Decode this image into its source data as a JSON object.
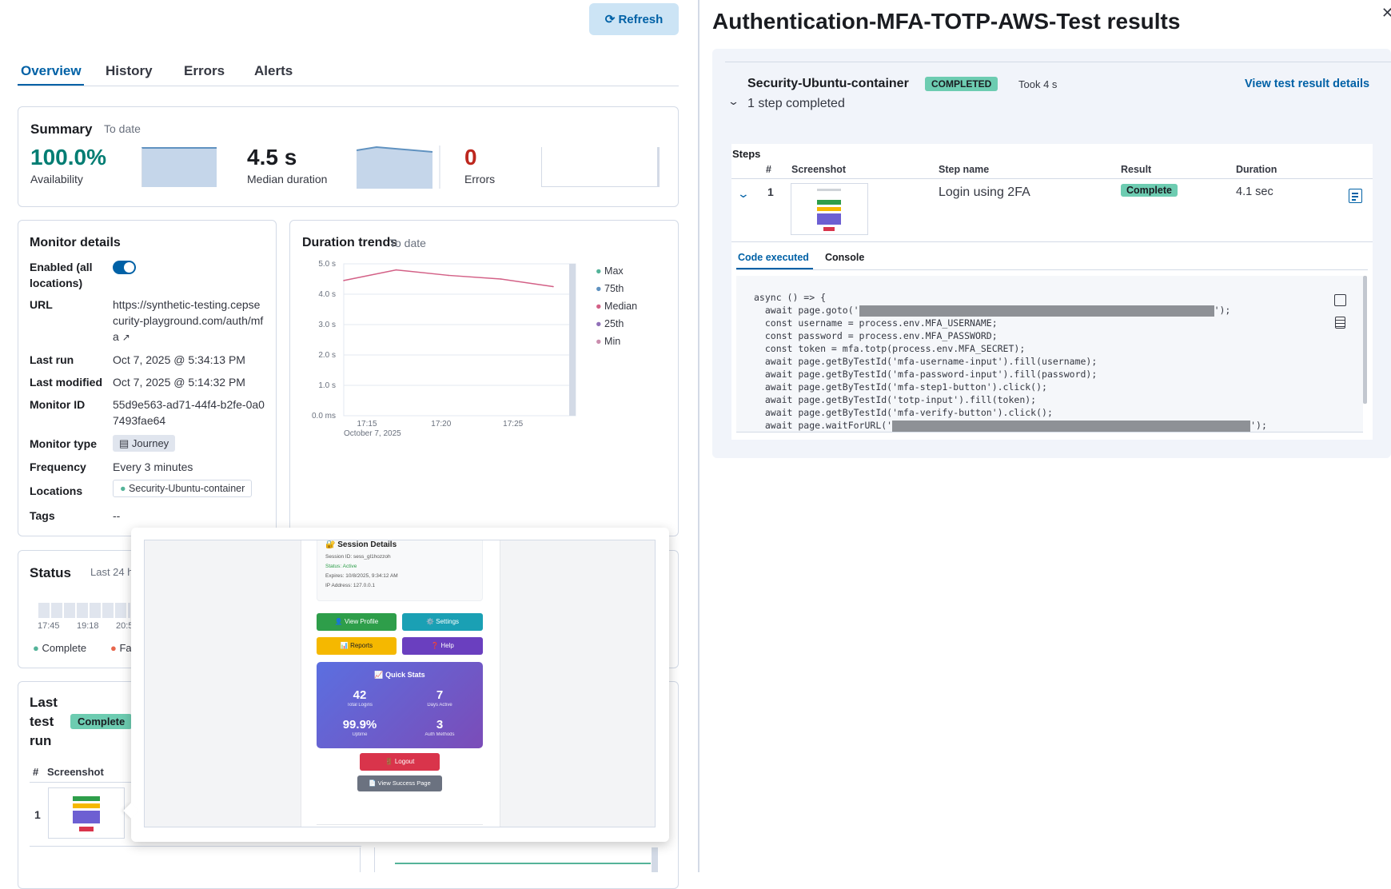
{
  "refresh_label": "Refresh",
  "tabs": [
    "Overview",
    "History",
    "Errors",
    "Alerts"
  ],
  "summary": {
    "title": "Summary",
    "range": "To date",
    "availability": "100.0%",
    "availability_label": "Availability",
    "median": "4.5 s",
    "median_label": "Median duration",
    "errors": "0",
    "errors_label": "Errors"
  },
  "monitor": {
    "title": "Monitor details",
    "enabled_label": "Enabled (all locations)",
    "url_label": "URL",
    "url_value": "https://synthetic-testing.cepsecurity-playground.com/auth/mfa",
    "last_run_label": "Last run",
    "last_run_value": "Oct 7, 2025 @ 5:34:13 PM",
    "last_modified_label": "Last modified",
    "last_modified_value": "Oct 7, 2025 @ 5:14:32 PM",
    "monitor_id_label": "Monitor ID",
    "monitor_id_value": "55d9e563-ad71-44f4-b2fe-0a07493fae64",
    "type_label": "Monitor type",
    "type_value": "Journey",
    "frequency_label": "Frequency",
    "frequency_value": "Every 3 minutes",
    "locations_label": "Locations",
    "locations_value": "Security-Ubuntu-container",
    "tags_label": "Tags",
    "tags_value": "--"
  },
  "trends": {
    "title": "Duration trends",
    "range": "To date",
    "yticks": [
      "5.0 s",
      "4.0 s",
      "3.0 s",
      "2.0 s",
      "1.0 s",
      "0.0 ms"
    ],
    "xticks": [
      "17:15",
      "17:20",
      "17:25"
    ],
    "xdate": "October 7, 2025",
    "legend": [
      "Max",
      "75th",
      "Median",
      "25th",
      "Min"
    ],
    "legend_colors": [
      "#54b399",
      "#6092c0",
      "#d36086",
      "#9170b8",
      "#ca8eae"
    ]
  },
  "chart_data": {
    "type": "line",
    "x": [
      "17:12",
      "17:16",
      "17:20",
      "17:24",
      "17:28"
    ],
    "series": [
      {
        "name": "Median",
        "values": [
          4.45,
          4.8,
          4.62,
          4.5,
          4.25
        ]
      }
    ],
    "ylim": [
      0,
      5
    ]
  },
  "status": {
    "title": "Status",
    "range": "Last 24 h",
    "ticks": [
      "17:45",
      "19:18",
      "20:5"
    ],
    "legend_complete": "Complete",
    "legend_failed": "Fa"
  },
  "last_run": {
    "title": "Last test run",
    "badge": "Complete",
    "col_num": "#",
    "col_screenshot": "Screenshot",
    "row_num": "1"
  },
  "preview": {
    "session_title": "🔐 Session Details",
    "session_id": "Session ID: sess_gl1hozzoh",
    "status": "Status: Active",
    "expires": "Expires: 10/8/2025, 9:34:12 AM",
    "ip": "IP Address: 127.0.0.1",
    "buttons": [
      "👤 View Profile",
      "⚙️ Settings",
      "📊 Reports",
      "❓ Help"
    ],
    "stats_title": "📈 Quick Stats",
    "stats": [
      {
        "value": "42",
        "label": "Total Logins"
      },
      {
        "value": "7",
        "label": "Days Active"
      },
      {
        "value": "99.9%",
        "label": "Uptime"
      },
      {
        "value": "3",
        "label": "Auth Methods"
      }
    ],
    "logout": "🚪 Logout",
    "success": "📄 View Success Page"
  },
  "flyout": {
    "title": "Authentication-MFA-TOTP-AWS-Test results",
    "location": "Security-Ubuntu-container",
    "badge": "COMPLETED",
    "took": "Took 4 s",
    "view_link": "View test result details",
    "steps_completed": "1 step completed",
    "steps_label": "Steps",
    "cols": [
      "#",
      "Screenshot",
      "Step name",
      "Result",
      "Duration"
    ],
    "step": {
      "num": "1",
      "name": "Login using 2FA",
      "result": "Complete",
      "duration": "4.1 sec"
    },
    "code_tabs": [
      "Code executed",
      "Console"
    ],
    "code": [
      "async () => {",
      "  await page.goto('",
      "  const username = process.env.MFA_USERNAME;",
      "  const password = process.env.MFA_PASSWORD;",
      "  const token = mfa.totp(process.env.MFA_SECRET);",
      "  await page.getByTestId('mfa-username-input').fill(username);",
      "  await page.getByTestId('mfa-password-input').fill(password);",
      "  await page.getByTestId('mfa-step1-button').click();",
      "  await page.getByTestId('totp-input').fill(token);",
      "  await page.getByTestId('mfa-verify-button').click();",
      "  await page.waitForURL('"
    ]
  }
}
